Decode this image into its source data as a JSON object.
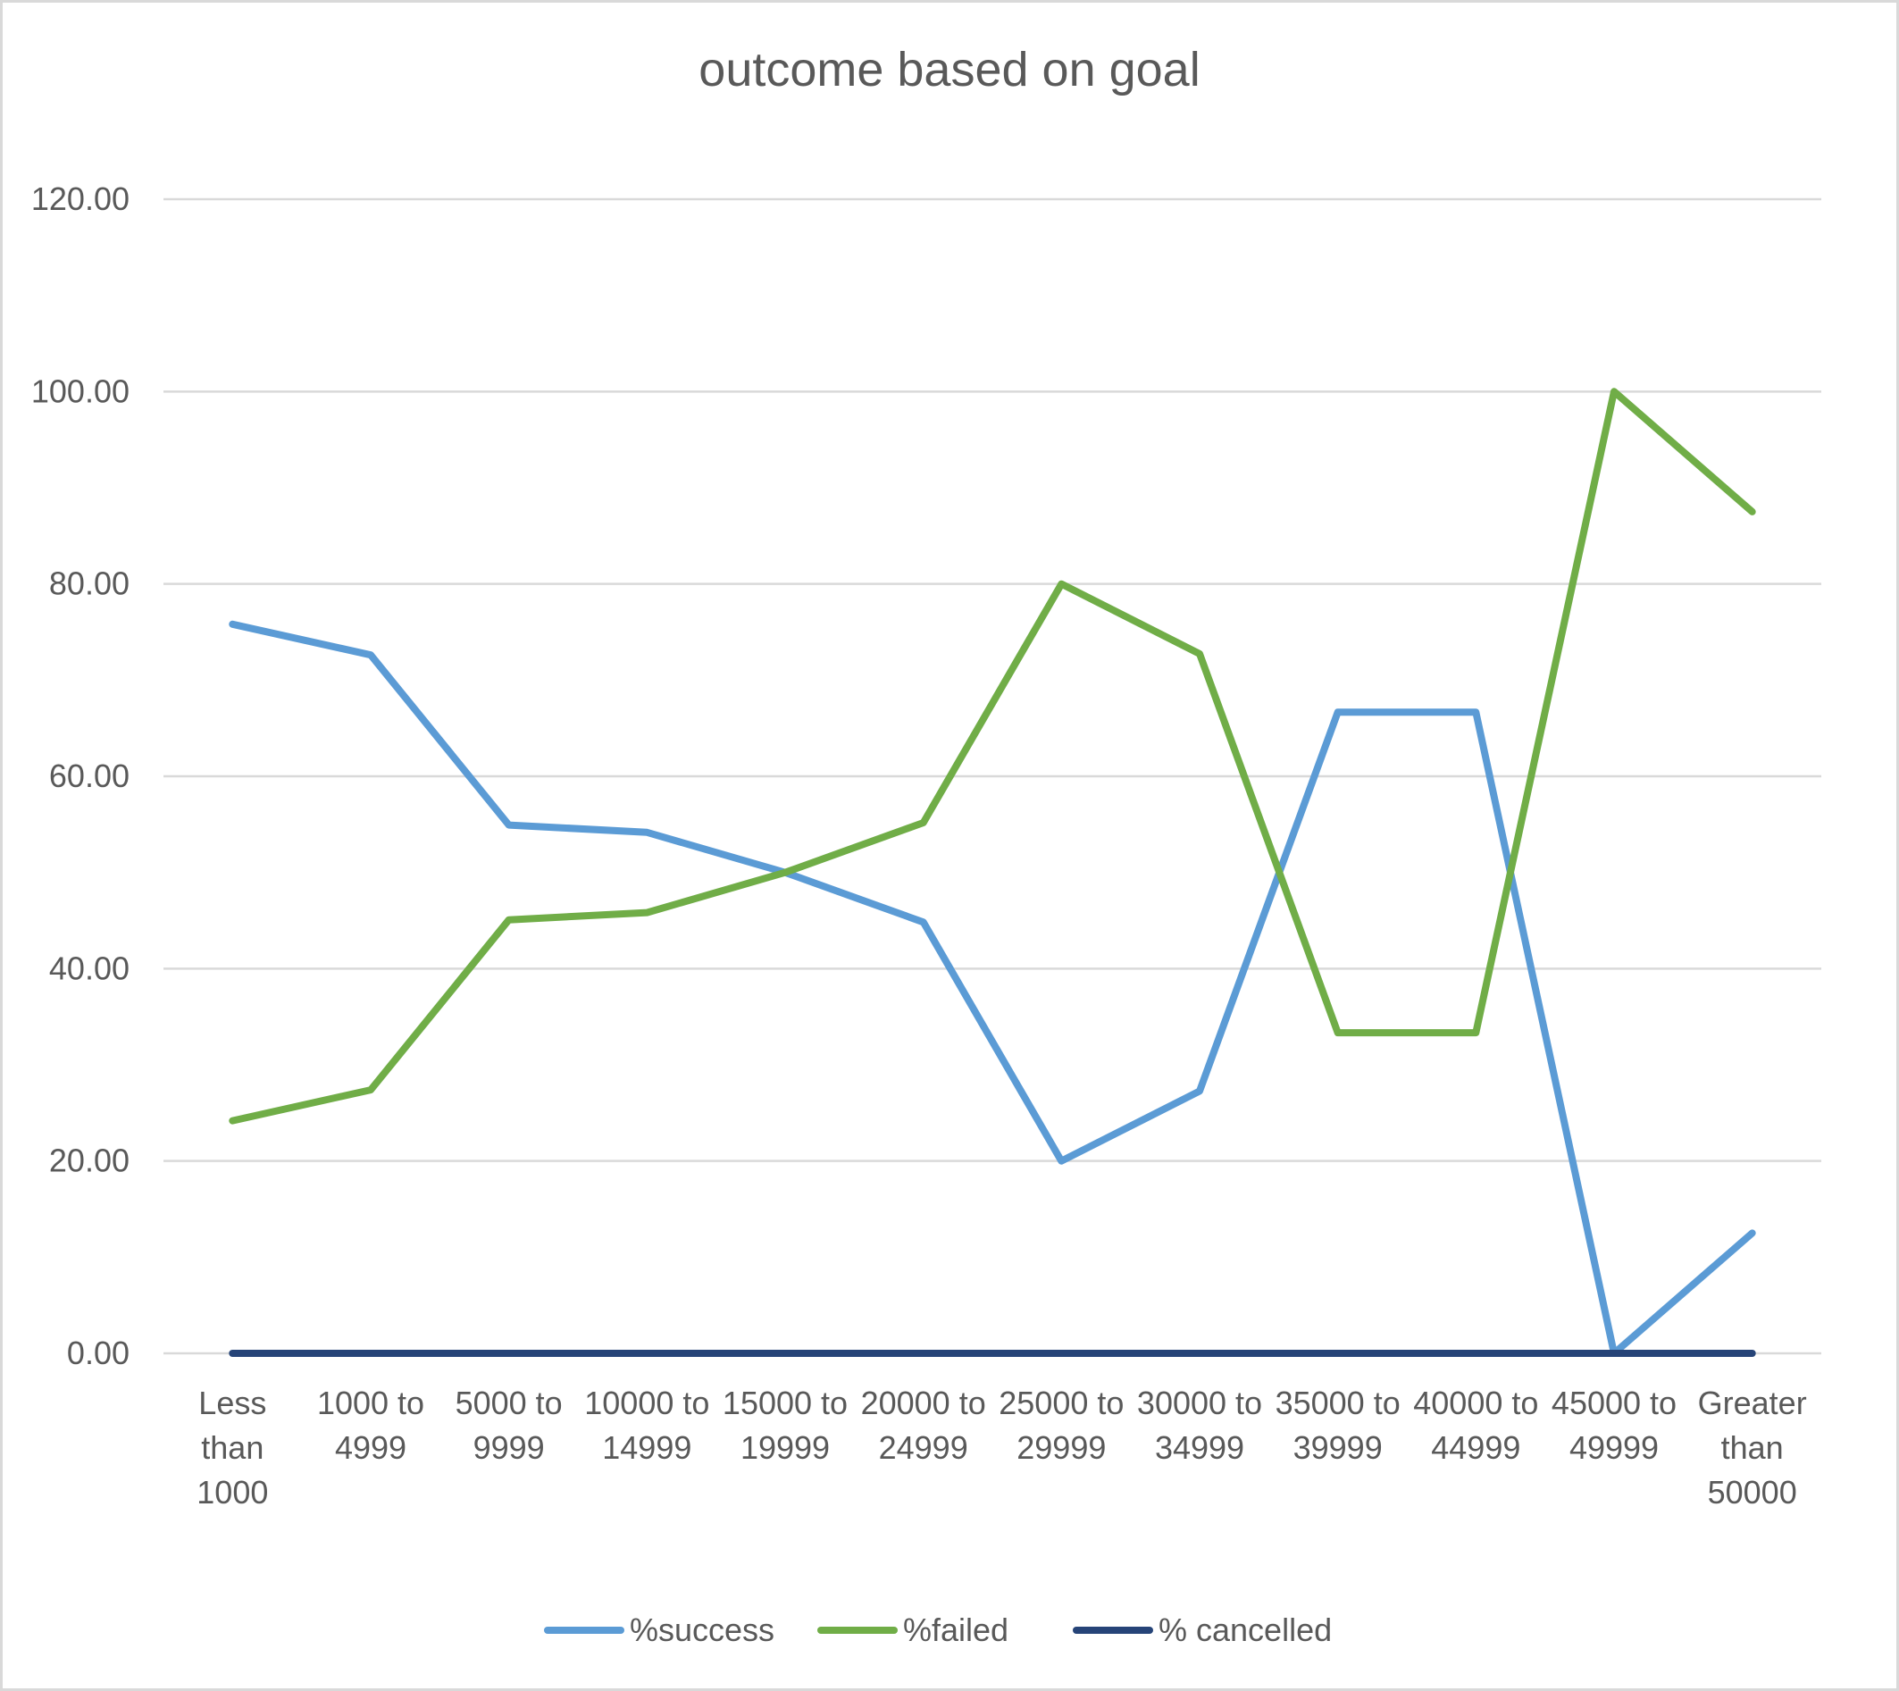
{
  "chart_data": {
    "type": "line",
    "title": "outcome based on goal",
    "xlabel": "",
    "ylabel": "",
    "ylim": [
      0,
      120
    ],
    "ytick_step": 20,
    "ytick_labels": [
      "0.00",
      "20.00",
      "40.00",
      "60.00",
      "80.00",
      "100.00",
      "120.00"
    ],
    "categories": [
      "Less than 1000",
      "1000 to 4999",
      "5000 to 9999",
      "10000 to 14999",
      "15000 to 19999",
      "20000 to 24999",
      "25000 to 29999",
      "30000 to 34999",
      "35000 to 39999",
      "40000 to 44999",
      "45000 to 49999",
      "Greater than 50000"
    ],
    "category_label_lines": [
      [
        "Less",
        "than",
        "1000"
      ],
      [
        "1000 to",
        "4999"
      ],
      [
        "5000 to",
        "9999"
      ],
      [
        "10000 to",
        "14999"
      ],
      [
        "15000 to",
        "19999"
      ],
      [
        "20000 to",
        "24999"
      ],
      [
        "25000 to",
        "29999"
      ],
      [
        "30000 to",
        "34999"
      ],
      [
        "35000 to",
        "39999"
      ],
      [
        "40000 to",
        "44999"
      ],
      [
        "45000 to",
        "49999"
      ],
      [
        "Greater",
        "than",
        "50000"
      ]
    ],
    "series": [
      {
        "name": "%success",
        "color": "#5b9bd5",
        "values": [
          75.81,
          72.61,
          54.93,
          54.17,
          50.0,
          44.83,
          20.0,
          27.27,
          66.67,
          66.67,
          0.0,
          12.5
        ]
      },
      {
        "name": "%failed",
        "color": "#70ad47",
        "values": [
          24.19,
          27.39,
          45.07,
          45.83,
          50.0,
          55.17,
          80.0,
          72.73,
          33.33,
          33.33,
          100.0,
          87.5
        ]
      },
      {
        "name": "% cancelled",
        "color": "#264478",
        "values": [
          0,
          0,
          0,
          0,
          0,
          0,
          0,
          0,
          0,
          0,
          0,
          0
        ]
      }
    ],
    "grid": true,
    "legend_position": "bottom"
  }
}
